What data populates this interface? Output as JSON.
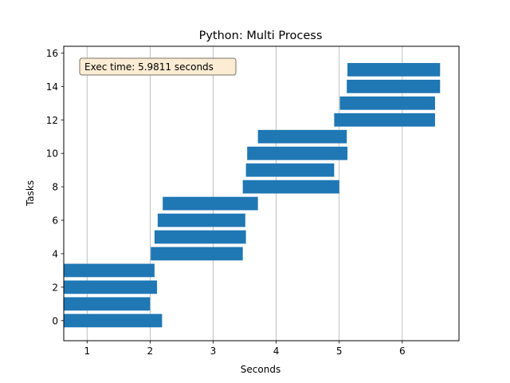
{
  "chart_data": {
    "type": "bar",
    "orientation": "horizontal",
    "title": "Python: Multi Process",
    "xlabel": "Seconds",
    "ylabel": "Tasks",
    "xlim": [
      0.63,
      6.9
    ],
    "ylim": [
      -1.2,
      16.4
    ],
    "xticks": [
      1,
      2,
      3,
      4,
      5,
      6
    ],
    "yticks": [
      0,
      2,
      4,
      6,
      8,
      10,
      12,
      14,
      16
    ],
    "grid": "x",
    "bar_color": "#1f77b4",
    "annotation": "Exec time: 5.9811 seconds",
    "tasks": [
      {
        "task": 0,
        "start": 0.63,
        "end": 2.19
      },
      {
        "task": 1,
        "start": 0.63,
        "end": 2.0
      },
      {
        "task": 2,
        "start": 0.63,
        "end": 2.11
      },
      {
        "task": 3,
        "start": 0.63,
        "end": 2.07
      },
      {
        "task": 4,
        "start": 2.01,
        "end": 3.47
      },
      {
        "task": 5,
        "start": 2.07,
        "end": 3.52
      },
      {
        "task": 6,
        "start": 2.12,
        "end": 3.51
      },
      {
        "task": 7,
        "start": 2.2,
        "end": 3.71
      },
      {
        "task": 8,
        "start": 3.47,
        "end": 5.0
      },
      {
        "task": 9,
        "start": 3.52,
        "end": 4.92
      },
      {
        "task": 10,
        "start": 3.54,
        "end": 5.13
      },
      {
        "task": 11,
        "start": 3.71,
        "end": 5.12
      },
      {
        "task": 12,
        "start": 4.92,
        "end": 6.52
      },
      {
        "task": 13,
        "start": 5.01,
        "end": 6.52
      },
      {
        "task": 14,
        "start": 5.12,
        "end": 6.6
      },
      {
        "task": 15,
        "start": 5.13,
        "end": 6.6
      }
    ]
  }
}
